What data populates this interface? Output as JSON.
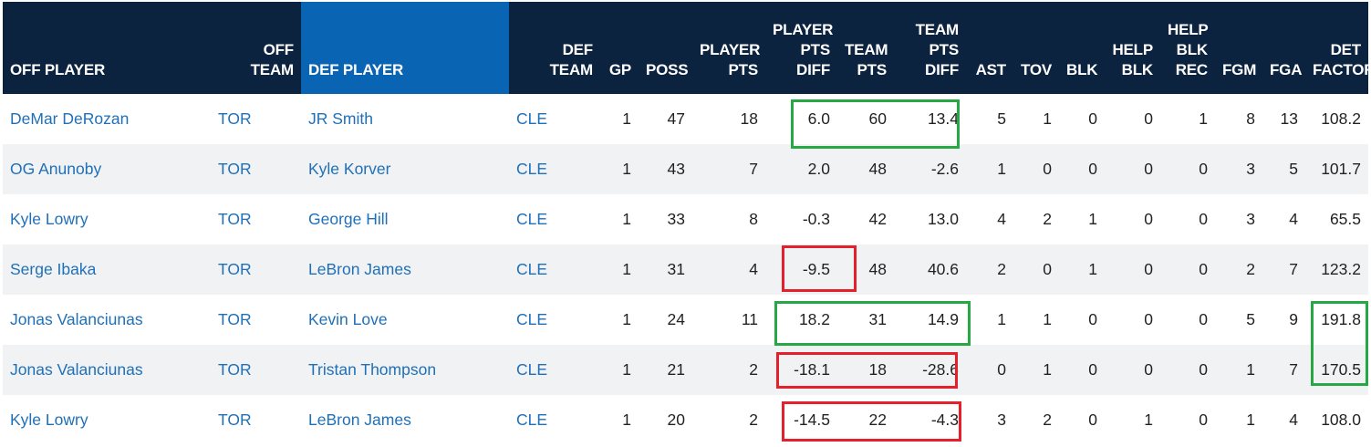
{
  "table": {
    "columns": [
      {
        "key": "off_player",
        "label": "OFF PLAYER"
      },
      {
        "key": "off_team",
        "label": "OFF TEAM"
      },
      {
        "key": "def_player",
        "label": "DEF PLAYER"
      },
      {
        "key": "def_team",
        "label": "DEF TEAM"
      },
      {
        "key": "gp",
        "label": "GP"
      },
      {
        "key": "poss",
        "label": "POSS"
      },
      {
        "key": "player_pts",
        "label": "PLAYER PTS"
      },
      {
        "key": "player_pts_diff",
        "label": "PLAYER PTS DIFF"
      },
      {
        "key": "team_pts",
        "label": "TEAM PTS"
      },
      {
        "key": "team_pts_diff",
        "label": "TEAM PTS DIFF"
      },
      {
        "key": "ast",
        "label": "AST"
      },
      {
        "key": "tov",
        "label": "TOV"
      },
      {
        "key": "blk",
        "label": "BLK"
      },
      {
        "key": "help_blk",
        "label": "HELP BLK"
      },
      {
        "key": "help_blk_rec",
        "label": "HELP BLK REC"
      },
      {
        "key": "fgm",
        "label": "FGM"
      },
      {
        "key": "fga",
        "label": "FGA"
      },
      {
        "key": "det_factor",
        "label": "DET FACTOR"
      }
    ],
    "rows": [
      [
        "DeMar DeRozan",
        "TOR",
        "JR Smith",
        "CLE",
        "1",
        "47",
        "18",
        "6.0",
        "60",
        "13.4",
        "5",
        "1",
        "0",
        "0",
        "1",
        "8",
        "13",
        "108.2"
      ],
      [
        "OG Anunoby",
        "TOR",
        "Kyle Korver",
        "CLE",
        "1",
        "43",
        "7",
        "2.0",
        "48",
        "-2.6",
        "1",
        "0",
        "0",
        "0",
        "0",
        "3",
        "5",
        "101.7"
      ],
      [
        "Kyle Lowry",
        "TOR",
        "George Hill",
        "CLE",
        "1",
        "33",
        "8",
        "-0.3",
        "42",
        "13.0",
        "4",
        "2",
        "1",
        "0",
        "0",
        "3",
        "4",
        "65.5"
      ],
      [
        "Serge Ibaka",
        "TOR",
        "LeBron James",
        "CLE",
        "1",
        "31",
        "4",
        "-9.5",
        "48",
        "40.6",
        "2",
        "0",
        "1",
        "0",
        "0",
        "2",
        "7",
        "123.2"
      ],
      [
        "Jonas Valanciunas",
        "TOR",
        "Kevin Love",
        "CLE",
        "1",
        "24",
        "11",
        "18.2",
        "31",
        "14.9",
        "1",
        "1",
        "0",
        "0",
        "0",
        "5",
        "9",
        "191.8"
      ],
      [
        "Jonas Valanciunas",
        "TOR",
        "Tristan Thompson",
        "CLE",
        "1",
        "21",
        "2",
        "-18.1",
        "18",
        "-28.6",
        "0",
        "1",
        "0",
        "0",
        "0",
        "1",
        "7",
        "170.5"
      ],
      [
        "Kyle Lowry",
        "TOR",
        "LeBron James",
        "CLE",
        "1",
        "20",
        "2",
        "-14.5",
        "22",
        "-4.3",
        "3",
        "2",
        "0",
        "1",
        "0",
        "1",
        "4",
        "108.0"
      ]
    ],
    "active_sort_column": "def_player"
  },
  "colors": {
    "header_bg": "#0c2340",
    "header_active_bg": "#0a64b4",
    "link": "#2070b8",
    "highlight_green": "#27a844",
    "highlight_red": "#e3202b"
  }
}
